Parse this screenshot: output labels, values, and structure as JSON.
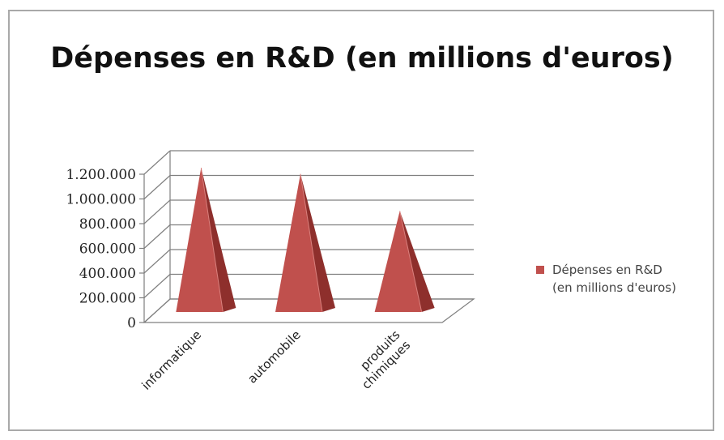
{
  "chart_data": {
    "type": "bar",
    "bar_shape": "3d-pyramid",
    "title": "Dépenses en R&D (en millions d'euros)",
    "categories": [
      "informatique",
      "automobile",
      "produits chimiques"
    ],
    "category_lines": [
      [
        "informatique"
      ],
      [
        "automobile"
      ],
      [
        "produits",
        "chimiques"
      ]
    ],
    "series": [
      {
        "name": "Dépenses en R&D (en millions d'euros)",
        "values": [
          1200000,
          1150000,
          850000
        ]
      }
    ],
    "ylim": [
      0,
      1200000
    ],
    "yticks": [
      0,
      200000,
      400000,
      600000,
      800000,
      1000000,
      1200000
    ],
    "ytick_labels": [
      "0",
      "200.000",
      "400.000",
      "600.000",
      "800.000",
      "1.000.000",
      "1.200.000"
    ],
    "grid": true,
    "legend_position": "right",
    "colors": {
      "series": "#c0504d",
      "series_dark": "#8e2f2c",
      "series_light": "#d9807d",
      "grid": "#7f7f7f"
    }
  },
  "legend": {
    "label": "Dépenses en R&D\n(en millions d'euros)"
  }
}
